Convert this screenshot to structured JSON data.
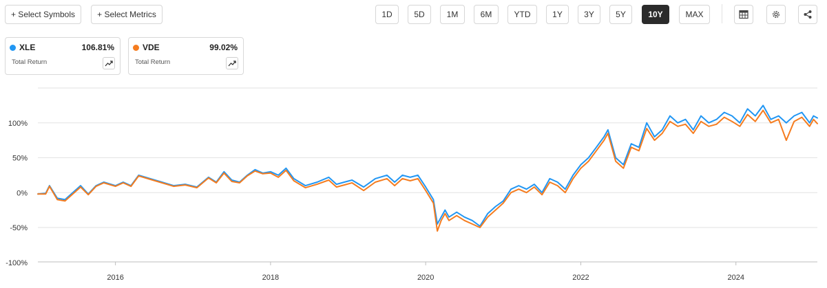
{
  "toolbar": {
    "select_symbols": "+ Select Symbols",
    "select_metrics": "+ Select Metrics",
    "ranges": [
      "1D",
      "5D",
      "1M",
      "6M",
      "YTD",
      "1Y",
      "3Y",
      "5Y",
      "10Y",
      "MAX"
    ],
    "active_range": "10Y",
    "icons": [
      "table-icon",
      "gear-icon",
      "share-icon"
    ]
  },
  "legend": [
    {
      "symbol": "XLE",
      "value": "106.81%",
      "subtitle": "Total Return",
      "color": "#2196F3"
    },
    {
      "symbol": "VDE",
      "value": "99.02%",
      "subtitle": "Total Return",
      "color": "#F57C1F"
    }
  ],
  "chart_data": {
    "type": "line",
    "title": "",
    "xlabel": "",
    "ylabel": "",
    "xlim": [
      2015.0,
      2025.05
    ],
    "ylim": [
      -100,
      150
    ],
    "x_ticks": [
      2016,
      2018,
      2020,
      2022,
      2024
    ],
    "x_tick_labels": [
      "2016",
      "2018",
      "2020",
      "2022",
      "2024"
    ],
    "y_ticks": [
      100,
      50,
      0,
      -50,
      -100
    ],
    "y_tick_labels": [
      "100%",
      "50%",
      "0%",
      "-50%",
      "-100%"
    ],
    "grid": true,
    "series": [
      {
        "name": "XLE",
        "color": "#2196F3",
        "x": [
          2015.0,
          2015.1,
          2015.15,
          2015.25,
          2015.35,
          2015.45,
          2015.55,
          2015.65,
          2015.75,
          2015.85,
          2016.0,
          2016.1,
          2016.2,
          2016.3,
          2016.45,
          2016.6,
          2016.75,
          2016.9,
          2017.05,
          2017.2,
          2017.3,
          2017.4,
          2017.5,
          2017.6,
          2017.7,
          2017.8,
          2017.9,
          2018.0,
          2018.1,
          2018.2,
          2018.3,
          2018.45,
          2018.6,
          2018.75,
          2018.85,
          2018.95,
          2019.05,
          2019.2,
          2019.35,
          2019.5,
          2019.6,
          2019.7,
          2019.8,
          2019.9,
          2020.0,
          2020.1,
          2020.15,
          2020.2,
          2020.25,
          2020.3,
          2020.4,
          2020.5,
          2020.6,
          2020.7,
          2020.8,
          2020.9,
          2021.0,
          2021.1,
          2021.2,
          2021.3,
          2021.4,
          2021.5,
          2021.6,
          2021.7,
          2021.8,
          2021.9,
          2022.0,
          2022.1,
          2022.2,
          2022.3,
          2022.35,
          2022.45,
          2022.55,
          2022.65,
          2022.75,
          2022.85,
          2022.95,
          2023.05,
          2023.15,
          2023.25,
          2023.35,
          2023.45,
          2023.55,
          2023.65,
          2023.75,
          2023.85,
          2023.95,
          2024.05,
          2024.15,
          2024.25,
          2024.35,
          2024.45,
          2024.55,
          2024.65,
          2024.75,
          2024.85,
          2024.95,
          2025.0,
          2025.05
        ],
        "values": [
          -2,
          -1,
          10,
          -8,
          -10,
          0,
          10,
          -2,
          10,
          15,
          10,
          15,
          10,
          25,
          20,
          15,
          10,
          12,
          8,
          22,
          15,
          30,
          18,
          15,
          25,
          33,
          28,
          30,
          25,
          35,
          20,
          10,
          15,
          22,
          12,
          15,
          18,
          8,
          20,
          25,
          15,
          25,
          22,
          25,
          8,
          -10,
          -45,
          -35,
          -25,
          -35,
          -28,
          -35,
          -40,
          -48,
          -30,
          -20,
          -12,
          5,
          10,
          5,
          12,
          0,
          20,
          15,
          5,
          25,
          40,
          50,
          65,
          80,
          90,
          50,
          40,
          70,
          65,
          100,
          80,
          90,
          110,
          100,
          105,
          90,
          110,
          100,
          105,
          115,
          110,
          100,
          120,
          110,
          125,
          105,
          110,
          100,
          110,
          115,
          100,
          110,
          107
        ]
      },
      {
        "name": "VDE",
        "color": "#F57C1F",
        "x": [
          2015.0,
          2015.1,
          2015.15,
          2015.25,
          2015.35,
          2015.45,
          2015.55,
          2015.65,
          2015.75,
          2015.85,
          2016.0,
          2016.1,
          2016.2,
          2016.3,
          2016.45,
          2016.6,
          2016.75,
          2016.9,
          2017.05,
          2017.2,
          2017.3,
          2017.4,
          2017.5,
          2017.6,
          2017.7,
          2017.8,
          2017.9,
          2018.0,
          2018.1,
          2018.2,
          2018.3,
          2018.45,
          2018.6,
          2018.75,
          2018.85,
          2018.95,
          2019.05,
          2019.2,
          2019.35,
          2019.5,
          2019.6,
          2019.7,
          2019.8,
          2019.9,
          2020.0,
          2020.1,
          2020.15,
          2020.2,
          2020.25,
          2020.3,
          2020.4,
          2020.5,
          2020.6,
          2020.7,
          2020.8,
          2020.9,
          2021.0,
          2021.1,
          2021.2,
          2021.3,
          2021.4,
          2021.5,
          2021.6,
          2021.7,
          2021.8,
          2021.9,
          2022.0,
          2022.1,
          2022.2,
          2022.3,
          2022.35,
          2022.45,
          2022.55,
          2022.65,
          2022.75,
          2022.85,
          2022.95,
          2023.05,
          2023.15,
          2023.25,
          2023.35,
          2023.45,
          2023.55,
          2023.65,
          2023.75,
          2023.85,
          2023.95,
          2024.05,
          2024.15,
          2024.25,
          2024.35,
          2024.45,
          2024.55,
          2024.65,
          2024.75,
          2024.85,
          2024.95,
          2025.0,
          2025.05
        ],
        "values": [
          -2,
          -2,
          9,
          -10,
          -12,
          -2,
          8,
          -3,
          9,
          14,
          9,
          14,
          9,
          24,
          19,
          14,
          9,
          11,
          7,
          21,
          14,
          28,
          16,
          14,
          24,
          31,
          27,
          28,
          22,
          32,
          17,
          7,
          12,
          18,
          8,
          11,
          14,
          3,
          15,
          20,
          10,
          20,
          17,
          20,
          3,
          -15,
          -55,
          -40,
          -30,
          -40,
          -33,
          -40,
          -45,
          -50,
          -35,
          -25,
          -15,
          0,
          5,
          0,
          8,
          -3,
          15,
          10,
          0,
          20,
          35,
          45,
          60,
          75,
          85,
          45,
          35,
          65,
          60,
          92,
          75,
          85,
          102,
          95,
          98,
          85,
          102,
          95,
          98,
          108,
          102,
          95,
          112,
          102,
          118,
          100,
          105,
          75,
          102,
          108,
          95,
          105,
          99
        ]
      }
    ]
  }
}
